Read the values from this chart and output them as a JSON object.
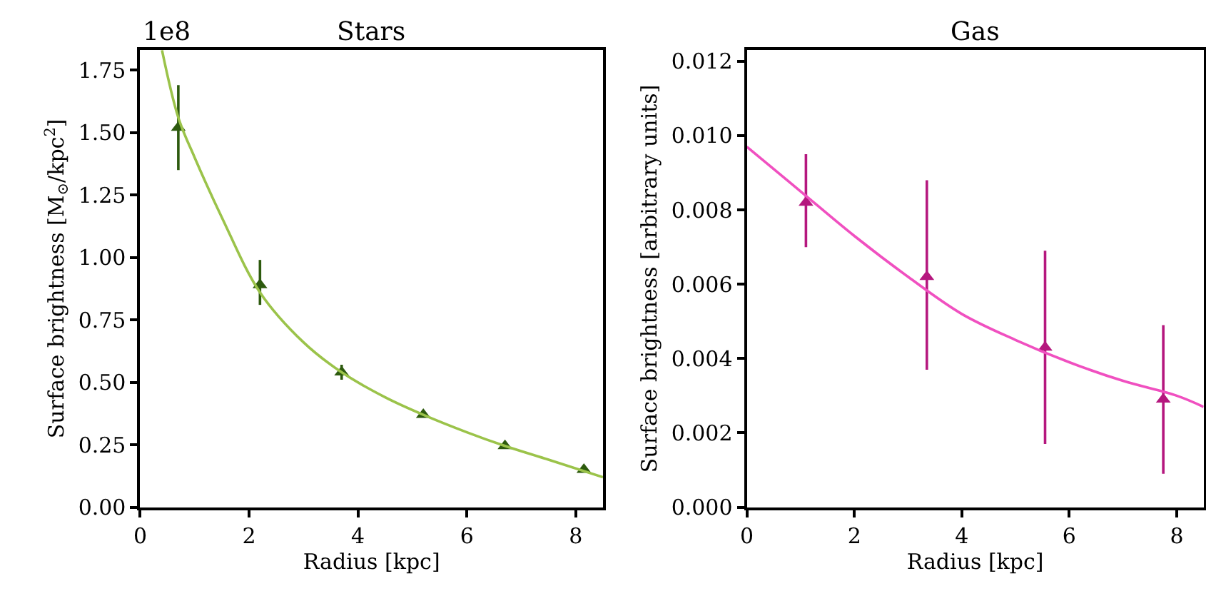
{
  "chart_data": [
    {
      "type": "scatter",
      "title": "Stars",
      "xlabel": "Radius [kpc]",
      "ylabel": "Surface brightness [M$_{⊙}$/kpc$^{2}$]",
      "marker": "triangle",
      "xlim": [
        0,
        8.5
      ],
      "xticks": [
        0,
        2,
        4,
        6,
        8
      ],
      "ylim": [
        0,
        1.83
      ],
      "yticks": [
        {
          "value": 0,
          "label": "0.00"
        },
        0.25,
        {
          "value": 0.5,
          "label": "0.50"
        },
        0.75,
        {
          "value": 1,
          "label": "1.00"
        },
        1.25,
        {
          "value": 1.5,
          "label": "1.50"
        },
        1.75
      ],
      "annotations": [
        "1e8"
      ],
      "series": [
        {
          "color": "#2d5a0e",
          "x": [
            0.7,
            2.2,
            3.7,
            5.2,
            6.7,
            8.15
          ],
          "values": [
            1.52,
            0.89,
            0.54,
            0.37,
            0.245,
            0.15
          ],
          "errors": [
            [
              1.35,
              1.69
            ],
            [
              0.81,
              0.99
            ],
            [
              0.51,
              0.57
            ],
            null,
            null,
            null
          ]
        },
        {
          "type": "line",
          "color": "#9bc34a",
          "marker": "none",
          "x": [
            0.4,
            0.7,
            1,
            1.5,
            2.2,
            3,
            3.7,
            4.5,
            5.2,
            6,
            6.7,
            7.5,
            8.5
          ],
          "values": [
            1.83,
            1.56,
            1.4,
            1.16,
            0.86,
            0.66,
            0.54,
            0.44,
            0.37,
            0.3,
            0.245,
            0.19,
            0.12
          ]
        }
      ]
    },
    {
      "type": "scatter",
      "title": "Gas",
      "xlabel": "Radius [kpc]",
      "ylabel": "Surface brightness [arbitrary units]",
      "marker": "triangle",
      "xlim": [
        0,
        8.5
      ],
      "xticks": [
        0,
        2,
        4,
        6,
        8
      ],
      "ylim": [
        0,
        0.0123
      ],
      "yticks": [
        {
          "value": 0,
          "label": "0.000"
        },
        0.002,
        0.004,
        0.006,
        0.008,
        {
          "value": 0.01,
          "label": "0.010"
        },
        0.012
      ],
      "series": [
        {
          "color": "#b5177e",
          "x": [
            1.1,
            3.35,
            5.55,
            7.75
          ],
          "values": [
            0.0082,
            0.0062,
            0.0043,
            0.0029
          ],
          "errors": [
            [
              0.007,
              0.0095
            ],
            [
              0.0037,
              0.0088
            ],
            [
              0.0017,
              0.0069
            ],
            [
              0.0009,
              0.0049
            ]
          ]
        },
        {
          "type": "line",
          "color": "#f050c0",
          "marker": "none",
          "x": [
            0,
            1,
            2,
            3,
            4,
            5,
            6,
            7,
            8,
            8.5
          ],
          "values": [
            0.0097,
            0.0085,
            0.0073,
            0.0062,
            0.0052,
            0.0045,
            0.0039,
            0.0034,
            0.003,
            0.0027
          ]
        }
      ]
    }
  ]
}
